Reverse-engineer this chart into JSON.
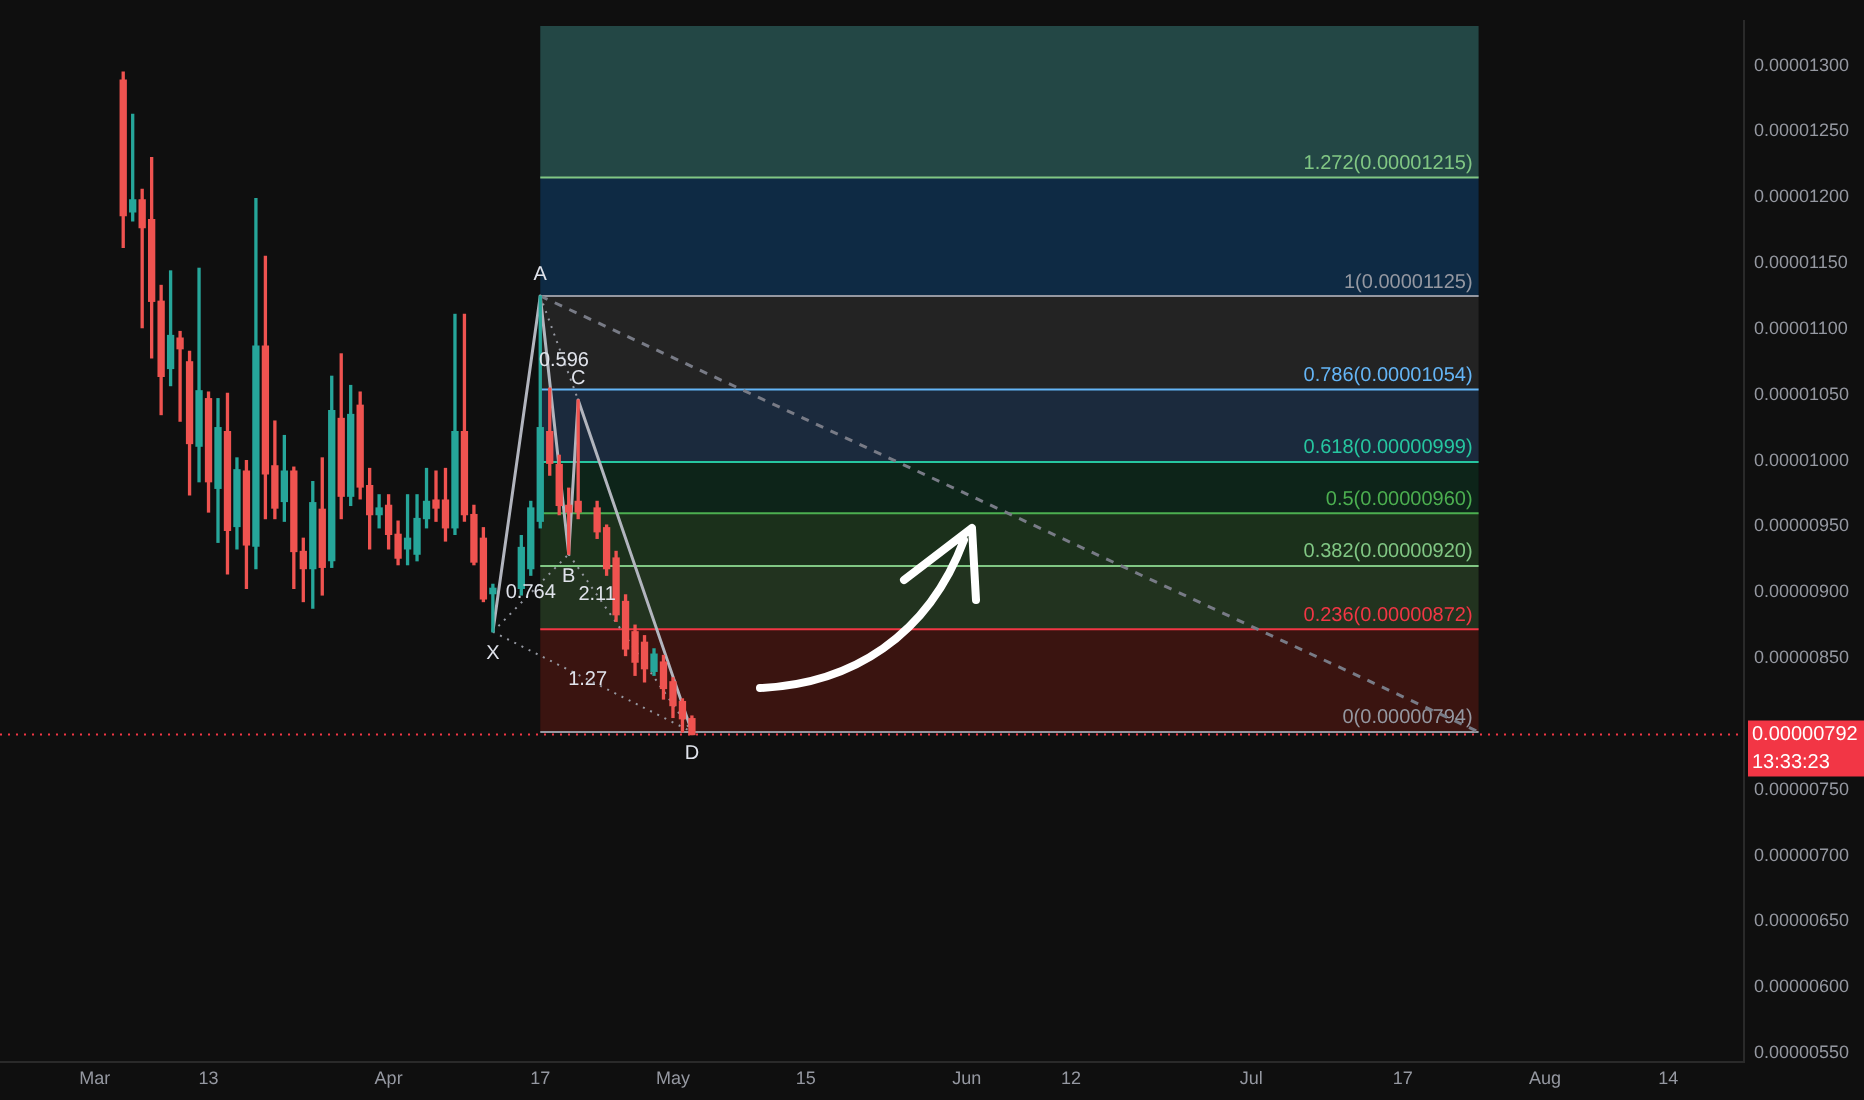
{
  "chart_data": {
    "type": "candlestick",
    "xlim": [
      "--02-19",
      "--08-22"
    ],
    "xticks": [
      {
        "value": "--03-01",
        "label": "Mar"
      },
      {
        "value": "--03-13",
        "label": "13"
      },
      {
        "value": "--04-01",
        "label": "Apr"
      },
      {
        "value": "--04-17",
        "label": "17"
      },
      {
        "value": "--05-01",
        "label": "May"
      },
      {
        "value": "--05-15",
        "label": "15"
      },
      {
        "value": "--06-01",
        "label": "Jun"
      },
      {
        "value": "--06-12",
        "label": "12"
      },
      {
        "value": "--07-01",
        "label": "Jul"
      },
      {
        "value": "--07-17",
        "label": "17"
      },
      {
        "value": "--08-01",
        "label": "Aug"
      },
      {
        "value": "--08-14",
        "label": "14"
      }
    ],
    "ylim": [
      5.43e-06,
      1.334e-05
    ],
    "yticks": [
      {
        "value": 5.5e-06,
        "label": "0.00000550"
      },
      {
        "value": 6e-06,
        "label": "0.00000600"
      },
      {
        "value": 6.5e-06,
        "label": "0.00000650"
      },
      {
        "value": 7e-06,
        "label": "0.00000700"
      },
      {
        "value": 7.5e-06,
        "label": "0.00000750"
      },
      {
        "value": 8.5e-06,
        "label": "0.00000850"
      },
      {
        "value": 9e-06,
        "label": "0.00000900"
      },
      {
        "value": 9.5e-06,
        "label": "0.00000950"
      },
      {
        "value": 1e-05,
        "label": "0.00001000"
      },
      {
        "value": 1.05e-05,
        "label": "0.00001050"
      },
      {
        "value": 1.1e-05,
        "label": "0.00001100"
      },
      {
        "value": 1.15e-05,
        "label": "0.00001150"
      },
      {
        "value": 1.2e-05,
        "label": "0.00001200"
      },
      {
        "value": 1.25e-05,
        "label": "0.00001250"
      },
      {
        "value": 1.3e-05,
        "label": "0.00001300"
      }
    ],
    "grid": false,
    "legend": false,
    "series": [
      {
        "color": "#26a69a",
        "x": [
          "--03-05",
          "--03-09",
          "--03-12",
          "--03-14",
          "--03-16",
          "--03-18",
          "--03-21",
          "--03-24",
          "--03-26",
          "--03-28",
          "--03-31",
          "--04-03",
          "--04-04",
          "--04-05",
          "--04-08",
          "--04-12",
          "--04-15",
          "--04-16",
          "--04-17",
          "--04-29"
        ],
        "ohlc": [
          [
            1.189e-05,
            1.263e-05,
            1.182e-05,
            1.198e-05
          ],
          [
            1.07e-05,
            1.144e-05,
            1.057e-05,
            1.095e-05
          ],
          [
            1.011e-05,
            1.146e-05,
            9.84e-06,
            1.053e-05
          ],
          [
            9.79e-06,
            1.047e-05,
            9.38e-06,
            1.025e-05
          ],
          [
            9.5e-06,
            1.002e-05,
            9.33e-06,
            9.93e-06
          ],
          [
            9.35e-06,
            1.199e-05,
            9.18e-06,
            1.087e-05
          ],
          [
            9.69e-06,
            1.019e-05,
            9.54e-06,
            9.92e-06
          ],
          [
            9.18e-06,
            9.84e-06,
            8.88e-06,
            9.68e-06
          ],
          [
            9.24e-06,
            1.064e-05,
            9.19e-06,
            1.038e-05
          ],
          [
            9.73e-06,
            1.057e-05,
            9.66e-06,
            1.035e-05
          ],
          [
            9.59e-06,
            9.74e-06,
            9.49e-06,
            9.64e-06
          ],
          [
            9.33e-06,
            9.74e-06,
            9.21e-06,
            9.41e-06
          ],
          [
            9.29e-06,
            9.74e-06,
            9.24e-06,
            9.56e-06
          ],
          [
            9.56e-06,
            9.94e-06,
            9.49e-06,
            9.69e-06
          ],
          [
            9.49e-06,
            1.111e-05,
            9.44e-06,
            1.022e-05
          ],
          [
            8.99e-06,
            9.06e-06,
            8.7e-06,
            9.03e-06
          ],
          [
            9.03e-06,
            9.43e-06,
            8.98e-06,
            9.34e-06
          ],
          [
            9.18e-06,
            9.69e-06,
            9.13e-06,
            9.64e-06
          ],
          [
            9.54e-06,
            1.125e-05,
            9.49e-06,
            1.025e-05
          ],
          [
            8.4e-06,
            8.57e-06,
            8.37e-06,
            8.53e-06
          ]
        ]
      },
      {
        "color": "#ef5350",
        "x": [
          "--03-04",
          "--03-06",
          "--03-07",
          "--03-08",
          "--03-10",
          "--03-11",
          "--03-13",
          "--03-15",
          "--03-17",
          "--03-19",
          "--03-20",
          "--03-22",
          "--03-23",
          "--03-25",
          "--03-27",
          "--03-29",
          "--03-30",
          "--04-01",
          "--04-02",
          "--04-06",
          "--04-07",
          "--04-09",
          "--04-10",
          "--04-11",
          "--04-18",
          "--04-19",
          "--04-20",
          "--04-21",
          "--04-23",
          "--04-24",
          "--04-25",
          "--04-26",
          "--04-27",
          "--04-28",
          "--04-30",
          "--05-01",
          "--05-02",
          "--05-03"
        ],
        "ohlc": [
          [
            1.289e-05,
            1.295e-05,
            1.162e-05,
            1.186e-05
          ],
          [
            1.198e-05,
            1.206e-05,
            1.101e-05,
            1.177e-05
          ],
          [
            1.183e-05,
            1.23e-05,
            1.078e-05,
            1.121e-05
          ],
          [
            1.121e-05,
            1.133e-05,
            1.035e-05,
            1.064e-05
          ],
          [
            1.093e-05,
            1.098e-05,
            1.03e-05,
            1.085e-05
          ],
          [
            1.075e-05,
            1.083e-05,
            9.74e-06,
            1.013e-05
          ],
          [
            1.047e-05,
            1.052e-05,
            9.61e-06,
            9.84e-06
          ],
          [
            1.022e-05,
            1.051e-05,
            9.14e-06,
            9.47e-06
          ],
          [
            9.92e-06,
            1e-05,
            9.03e-06,
            9.36e-06
          ],
          [
            1.087e-05,
            1.155e-05,
            9.56e-06,
            9.9e-06
          ],
          [
            9.96e-06,
            1.03e-05,
            9.56e-06,
            9.64e-06
          ],
          [
            9.92e-06,
            9.95e-06,
            9.03e-06,
            9.31e-06
          ],
          [
            9.31e-06,
            9.41e-06,
            8.93e-06,
            9.18e-06
          ],
          [
            9.63e-06,
            1.002e-05,
            8.98e-06,
            9.19e-06
          ],
          [
            1.032e-05,
            1.081e-05,
            9.56e-06,
            9.73e-06
          ],
          [
            1.042e-05,
            1.052e-05,
            9.71e-06,
            9.8e-06
          ],
          [
            9.81e-06,
            9.94e-06,
            9.33e-06,
            9.59e-06
          ],
          [
            9.66e-06,
            9.74e-06,
            9.33e-06,
            9.44e-06
          ],
          [
            9.44e-06,
            9.54e-06,
            9.21e-06,
            9.26e-06
          ],
          [
            9.7e-06,
            9.92e-06,
            9.54e-06,
            9.64e-06
          ],
          [
            9.7e-06,
            9.94e-06,
            9.39e-06,
            9.49e-06
          ],
          [
            1.022e-05,
            1.111e-05,
            9.54e-06,
            9.59e-06
          ],
          [
            9.59e-06,
            9.66e-06,
            9.21e-06,
            9.23e-06
          ],
          [
            9.41e-06,
            9.49e-06,
            8.93e-06,
            8.95e-06
          ],
          [
            1.022e-05,
            1.055e-05,
            9.89e-06,
            9.98e-06
          ],
          [
            9.97e-06,
            1.004e-05,
            9.59e-06,
            9.66e-06
          ],
          [
            9.66e-06,
            9.79e-06,
            9.29e-06,
            9.61e-06
          ],
          [
            9.69e-06,
            1.046e-05,
            9.56e-06,
            9.61e-06
          ],
          [
            9.64e-06,
            9.69e-06,
            9.41e-06,
            9.46e-06
          ],
          [
            9.49e-06,
            9.51e-06,
            9.13e-06,
            9.18e-06
          ],
          [
            9.26e-06,
            9.31e-06,
            8.78e-06,
            8.83e-06
          ],
          [
            8.93e-06,
            8.98e-06,
            8.52e-06,
            8.57e-06
          ],
          [
            8.7e-06,
            8.75e-06,
            8.37e-06,
            8.47e-06
          ],
          [
            8.62e-06,
            8.67e-06,
            8.32e-06,
            8.42e-06
          ],
          [
            8.47e-06,
            8.52e-06,
            8.19e-06,
            8.27e-06
          ],
          [
            8.32e-06,
            8.35e-06,
            8.05e-06,
            8.14e-06
          ],
          [
            8.17e-06,
            8.19e-06,
            7.94e-06,
            8.04e-06
          ],
          [
            8.04e-06,
            8.06e-06,
            7.92e-06,
            7.92e-06
          ]
        ]
      },
      {
        "type": "line",
        "color": "#b2b5be",
        "marker": "none",
        "line_style": "solid",
        "x": [
          "--04-12",
          "--04-17",
          "--04-20",
          "--04-21",
          "--05-03"
        ],
        "values": [
          8.7e-06,
          1.125e-05,
          9.29e-06,
          1.046e-05,
          7.94e-06
        ]
      },
      {
        "type": "line",
        "color": "#9598a1",
        "marker": "none",
        "line_style": "dotted",
        "x": [
          "--04-12",
          "--04-20"
        ],
        "values": [
          8.7e-06,
          9.29e-06
        ]
      },
      {
        "type": "line",
        "color": "#9598a1",
        "marker": "none",
        "line_style": "dotted",
        "x": [
          "--04-20",
          "--05-03"
        ],
        "values": [
          9.29e-06,
          7.94e-06
        ]
      },
      {
        "type": "line",
        "color": "#9598a1",
        "marker": "none",
        "line_style": "dotted",
        "x": [
          "--04-12",
          "--05-03"
        ],
        "values": [
          8.7e-06,
          7.94e-06
        ]
      },
      {
        "type": "line",
        "color": "#9598a1",
        "marker": "none",
        "line_style": "dotted",
        "x": [
          "--04-17",
          "--04-21"
        ],
        "values": [
          1.125e-05,
          1.046e-05
        ]
      },
      {
        "type": "line",
        "color": "#787b86",
        "marker": "none",
        "line_style": "dashed",
        "x": [
          "--04-17",
          "--07-25"
        ],
        "values": [
          1.125e-05,
          7.94e-06
        ]
      }
    ],
    "bands": [
      {
        "axis": "y",
        "from": 1.215e-05,
        "to": 1.33e-05,
        "color": "#234745"
      },
      {
        "axis": "y",
        "from": 1.125e-05,
        "to": 1.215e-05,
        "color": "#0e2a44"
      },
      {
        "axis": "y",
        "from": 1.054e-05,
        "to": 1.125e-05,
        "color": "#232323"
      },
      {
        "axis": "y",
        "from": 9.99e-06,
        "to": 1.054e-05,
        "color": "#1b2a3d"
      },
      {
        "axis": "y",
        "from": 9.6e-06,
        "to": 9.99e-06,
        "color": "#0d2419"
      },
      {
        "axis": "y",
        "from": 9.2e-06,
        "to": 9.6e-06,
        "color": "#1b301b"
      },
      {
        "axis": "y",
        "from": 8.72e-06,
        "to": 9.2e-06,
        "color": "#22331f"
      },
      {
        "axis": "y",
        "from": 7.94e-06,
        "to": 8.72e-06,
        "color": "#3a1410"
      }
    ],
    "ref_lines": [
      {
        "axis": "y",
        "value": 1.215e-05,
        "label": "1.272(0.00001215)",
        "color": "#81c784",
        "line_style": "solid"
      },
      {
        "axis": "y",
        "value": 1.125e-05,
        "label": "1(0.00001125)",
        "color": "#9598a1",
        "line_style": "solid"
      },
      {
        "axis": "y",
        "value": 1.054e-05,
        "label": "0.786(0.00001054)",
        "color": "#64b5f6",
        "line_style": "solid"
      },
      {
        "axis": "y",
        "value": 9.99e-06,
        "label": "0.618(0.00000999)",
        "color": "#26c6a0",
        "line_style": "solid"
      },
      {
        "axis": "y",
        "value": 9.6e-06,
        "label": "0.5(0.00000960)",
        "color": "#4caf50",
        "line_style": "solid"
      },
      {
        "axis": "y",
        "value": 9.2e-06,
        "label": "0.382(0.00000920)",
        "color": "#81c784",
        "line_style": "solid"
      },
      {
        "axis": "y",
        "value": 8.72e-06,
        "label": "0.236(0.00000872)",
        "color": "#f23645",
        "line_style": "solid"
      },
      {
        "axis": "y",
        "value": 7.94e-06,
        "label": "0(0.00000794)",
        "color": "#9598a1",
        "line_style": "solid"
      },
      {
        "axis": "y",
        "value": 7.92e-06,
        "label": "0.00000792",
        "color": "#f23645",
        "line_style": "dotted"
      }
    ],
    "annotations": [
      {
        "text": "X",
        "x": "--04-12",
        "y": 8.7e-06
      },
      {
        "text": "A",
        "x": "--04-17",
        "y": 1.125e-05
      },
      {
        "text": "B",
        "x": "--04-20",
        "y": 9.29e-06
      },
      {
        "text": "C",
        "x": "--04-21",
        "y": 1.046e-05
      },
      {
        "text": "D",
        "x": "--05-03",
        "y": 7.94e-06
      },
      {
        "text": "0.596",
        "x": "--04-19T12:00",
        "y": 1.076e-05
      },
      {
        "text": "0.764",
        "x": "--04-16",
        "y": 9e-06
      },
      {
        "text": "1.27",
        "x": "--04-22",
        "y": 8.34e-06
      },
      {
        "text": "2.11",
        "x": "--04-23",
        "y": 8.98e-06
      },
      "13:33:23"
    ]
  }
}
